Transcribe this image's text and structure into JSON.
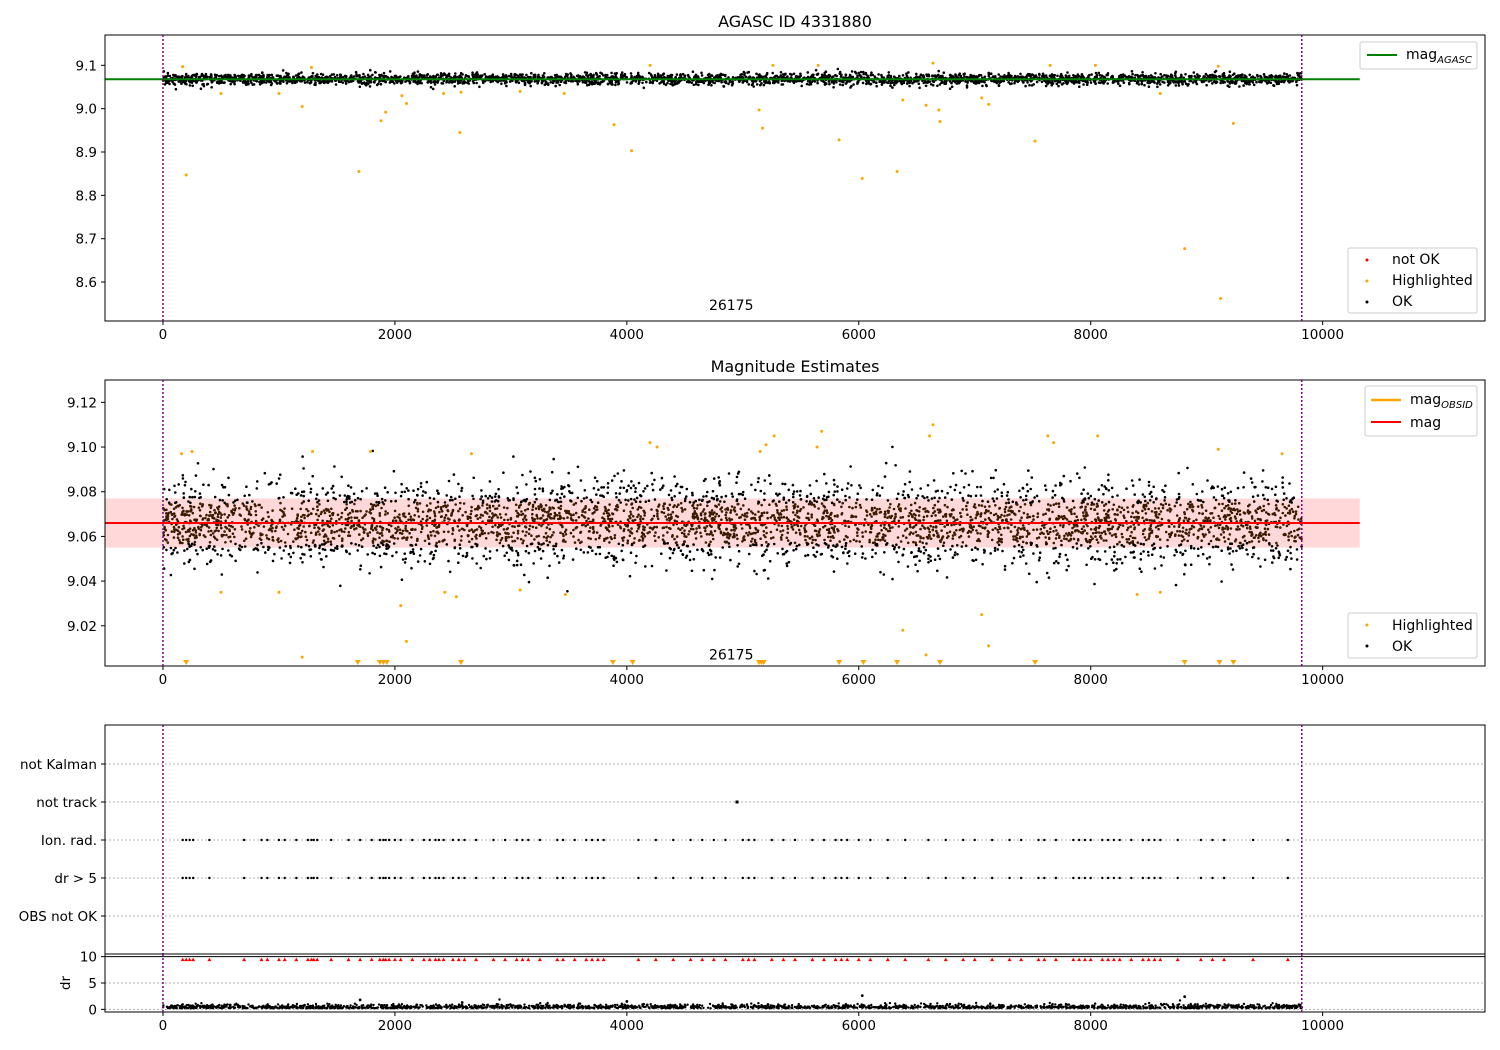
{
  "chart_data": [
    {
      "type": "scatter",
      "title": "AGASC ID 4331880",
      "xlim": [
        -500,
        11400
      ],
      "ylim": [
        8.51,
        9.17
      ],
      "x_ticks": [
        0,
        2000,
        4000,
        6000,
        8000,
        10000
      ],
      "y_ticks": [
        8.6,
        8.7,
        8.8,
        8.9,
        9.0,
        9.1
      ],
      "x_range": [
        0,
        9820
      ],
      "vlines": [
        0,
        9820
      ],
      "hline": {
        "name": "mag_AGASC",
        "value": 9.068,
        "x": [
          -500,
          10320
        ],
        "color": "#008000"
      },
      "annotation": {
        "text": "26175",
        "x": 4900,
        "y": 8.535
      },
      "ok_band": {
        "center": 9.068,
        "spread": 0.012
      },
      "highlighted": [
        [
          170,
          9.097
        ],
        [
          200,
          8.847
        ],
        [
          500,
          9.035
        ],
        [
          1000,
          9.035
        ],
        [
          1200,
          9.005
        ],
        [
          1280,
          9.095
        ],
        [
          1690,
          8.855
        ],
        [
          1880,
          8.972
        ],
        [
          1920,
          8.992
        ],
        [
          2060,
          9.03
        ],
        [
          2100,
          9.012
        ],
        [
          2420,
          9.035
        ],
        [
          2560,
          8.945
        ],
        [
          2570,
          9.038
        ],
        [
          3080,
          9.04
        ],
        [
          3460,
          9.035
        ],
        [
          3890,
          8.963
        ],
        [
          4040,
          8.903
        ],
        [
          4200,
          9.1
        ],
        [
          5140,
          8.997
        ],
        [
          5170,
          8.955
        ],
        [
          5260,
          9.1
        ],
        [
          5650,
          9.1
        ],
        [
          5830,
          8.928
        ],
        [
          6030,
          8.839
        ],
        [
          6330,
          8.855
        ],
        [
          6380,
          9.02
        ],
        [
          6580,
          9.008
        ],
        [
          6640,
          9.105
        ],
        [
          6690,
          8.997
        ],
        [
          6700,
          8.97
        ],
        [
          7060,
          9.025
        ],
        [
          7120,
          9.01
        ],
        [
          7520,
          8.925
        ],
        [
          7650,
          9.1
        ],
        [
          8040,
          9.1
        ],
        [
          8600,
          9.035
        ],
        [
          8810,
          8.677
        ],
        [
          9100,
          9.098
        ],
        [
          9120,
          8.562
        ],
        [
          9230,
          8.966
        ]
      ],
      "legend": [
        "not OK",
        "Highlighted",
        "OK"
      ],
      "legend_line": "mag_AGASC",
      "colors": {
        "ok": "#000000",
        "highlighted": "#ffa500",
        "not_ok": "#ff0000"
      }
    },
    {
      "type": "scatter",
      "title": "Magnitude Estimates",
      "xlim": [
        -500,
        11400
      ],
      "ylim": [
        9.002,
        9.13
      ],
      "x_ticks": [
        0,
        2000,
        4000,
        6000,
        8000,
        10000
      ],
      "y_ticks": [
        9.02,
        9.04,
        9.06,
        9.08,
        9.1,
        9.12
      ],
      "x_range": [
        0,
        9820
      ],
      "vlines": [
        0,
        9820
      ],
      "hline": {
        "name": "mag",
        "value": 9.066,
        "x": [
          -500,
          10320
        ],
        "color": "#ff0000"
      },
      "band": {
        "low": 9.055,
        "high": 9.077,
        "color": "#ffcccc"
      },
      "annotation": {
        "text": "26175",
        "x": 4900,
        "y": 9.005
      },
      "ok_band": {
        "center": 9.066,
        "spread": 0.012
      },
      "highlighted": [
        [
          160,
          9.097
        ],
        [
          250,
          9.098
        ],
        [
          500,
          9.035
        ],
        [
          1000,
          9.035
        ],
        [
          1200,
          9.006
        ],
        [
          1290,
          9.098
        ],
        [
          1790,
          9.098
        ],
        [
          2050,
          9.029
        ],
        [
          2100,
          9.013
        ],
        [
          2430,
          9.035
        ],
        [
          2530,
          9.033
        ],
        [
          2660,
          9.097
        ],
        [
          3080,
          9.036
        ],
        [
          3470,
          9.034
        ],
        [
          4200,
          9.102
        ],
        [
          4260,
          9.1
        ],
        [
          5150,
          9.098
        ],
        [
          5200,
          9.101
        ],
        [
          5270,
          9.105
        ],
        [
          5640,
          9.1
        ],
        [
          5680,
          9.107
        ],
        [
          6380,
          9.018
        ],
        [
          6580,
          9.007
        ],
        [
          6610,
          9.105
        ],
        [
          6640,
          9.11
        ],
        [
          7060,
          9.025
        ],
        [
          7120,
          9.011
        ],
        [
          7630,
          9.105
        ],
        [
          7680,
          9.102
        ],
        [
          8060,
          9.105
        ],
        [
          8400,
          9.034
        ],
        [
          8600,
          9.035
        ],
        [
          9100,
          9.099
        ],
        [
          9650,
          9.097
        ]
      ],
      "lower_triangles": [
        200,
        1680,
        1870,
        1900,
        1930,
        2570,
        3880,
        4050,
        5140,
        5160,
        5180,
        5830,
        6040,
        6330,
        6700,
        7520,
        8810,
        9110,
        9230
      ],
      "legend": [
        "Highlighted",
        "OK"
      ],
      "legend_lines": [
        "mag_OBSID",
        "mag"
      ],
      "colors": {
        "ok": "#000000",
        "ok_center": "#3a1a00",
        "highlighted": "#ffa500",
        "line_obsid": "#ffa500",
        "line_mag": "#ff0000"
      }
    },
    {
      "type": "scatter",
      "title": "",
      "xlim": [
        -500,
        11400
      ],
      "x_ticks": [
        0,
        2000,
        4000,
        6000,
        8000,
        10000
      ],
      "categories": [
        "OBS not OK",
        "dr > 5",
        "Ion. rad.",
        "not track",
        "not Kalman"
      ],
      "flag_x": [
        170,
        200,
        230,
        260,
        400,
        700,
        850,
        900,
        1000,
        1050,
        1150,
        1250,
        1280,
        1300,
        1330,
        1450,
        1600,
        1700,
        1800,
        1870,
        1900,
        1920,
        1950,
        2000,
        2050,
        2150,
        2250,
        2300,
        2350,
        2380,
        2420,
        2500,
        2550,
        2600,
        2700,
        2850,
        2950,
        3050,
        3100,
        3150,
        3250,
        3400,
        3450,
        3550,
        3650,
        3700,
        3750,
        3800,
        4100,
        4250,
        4400,
        4550,
        4650,
        4750,
        4850,
        5000,
        5050,
        5100,
        5250,
        5350,
        5450,
        5600,
        5700,
        5800,
        5850,
        5900,
        6000,
        6100,
        6250,
        6400,
        6600,
        6750,
        6900,
        7000,
        7150,
        7300,
        7400,
        7550,
        7600,
        7700,
        7850,
        7900,
        7950,
        8000,
        8100,
        8150,
        8200,
        8250,
        8350,
        8450,
        8500,
        8550,
        8600,
        8750,
        8950,
        9050,
        9150,
        9400,
        9700
      ],
      "not_track_x": 4950,
      "vlines": [
        0,
        9820
      ]
    },
    {
      "type": "scatter",
      "title": "",
      "ylabel": "dr",
      "xlim": [
        -500,
        11400
      ],
      "ylim": [
        -0.5,
        10.5
      ],
      "x_ticks": [
        0,
        2000,
        4000,
        6000,
        8000,
        10000
      ],
      "y_ticks": [
        0,
        5,
        10
      ],
      "x_range": [
        0,
        9820
      ],
      "hline": {
        "value": 10
      },
      "outliers": [
        [
          1700,
          1.8
        ],
        [
          4000,
          1.5
        ],
        [
          6030,
          2.6
        ],
        [
          8810,
          2.4
        ],
        [
          2580,
          1.3
        ]
      ],
      "colors": {
        "points": "#000000",
        "clipped": "#ff0000"
      }
    }
  ]
}
